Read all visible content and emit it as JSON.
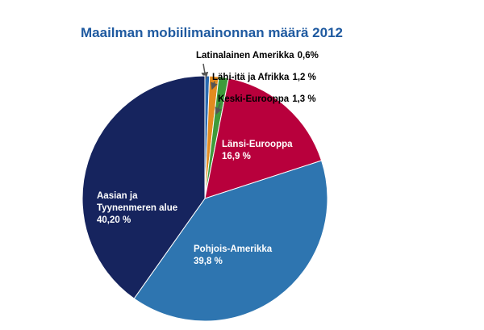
{
  "chart_data": {
    "type": "pie",
    "title": "Maailman mobiilimainonnan määrä 2012",
    "categories": [
      "Latinalainen Amerikka",
      "Lähi-itä ja Afrikka",
      "Keski-Eurooppa",
      "Länsi-Eurooppa",
      "Pohjois-Amerikka",
      "Aasian ja Tyynenmeren alue"
    ],
    "values": [
      0.6,
      1.2,
      1.3,
      16.9,
      39.8,
      40.2
    ],
    "value_labels": [
      "0,6%",
      "1,2 %",
      "1,3 %",
      "16,9 %",
      "39,8 %",
      "40,20 %"
    ],
    "colors": [
      "#2a6ab0",
      "#e38b1f",
      "#3e9a3a",
      "#b8003c",
      "#2e75b0",
      "#16245e"
    ]
  }
}
